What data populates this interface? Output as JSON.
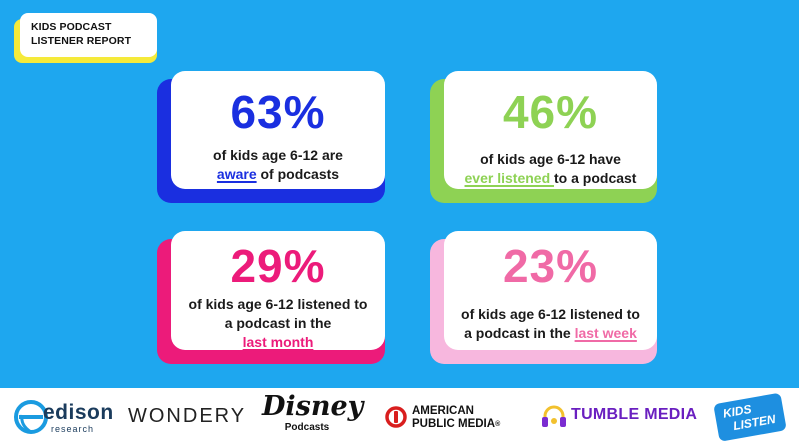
{
  "report": {
    "title_line1": "KIDS PODCAST",
    "title_line2": "LISTENER REPORT"
  },
  "stats": [
    {
      "percent": "63%",
      "text_line1": "of kids age 6-12 are",
      "highlight": "aware",
      "text_after": " of podcasts",
      "color": "#1a2fe0"
    },
    {
      "percent": "46%",
      "text_line1": "of kids age 6-12 have",
      "highlight": "ever listened ",
      "text_after": "to a podcast",
      "color": "#8ed254"
    },
    {
      "percent": "29%",
      "text_line1": "of kids age 6-12 listened to",
      "text_line2": "a podcast in the",
      "highlight": "last month",
      "color": "#ec1b7a"
    },
    {
      "percent": "23%",
      "text_line1": "of kids age 6-12 listened to",
      "text_line2": "a podcast in the ",
      "highlight": "last week",
      "color": "#f06aa6"
    }
  ],
  "colors": {
    "background": "#1ea7ef",
    "badge_shadow": "#f5ea3a",
    "card_shadow_1": "#1a2fe0",
    "card_shadow_2": "#8ed254",
    "card_shadow_3": "#ec1b7a",
    "card_shadow_4": "#f7b7de"
  },
  "logos": {
    "edison_name": "edison",
    "edison_sub": "research",
    "wondery": "WONDERY",
    "disney": "Disney",
    "disney_sub": "Podcasts",
    "apm_line1": "AMERICAN",
    "apm_line2": "PUBLIC MEDIA",
    "apm_mark": "®",
    "tumble": "TUMBLE MEDIA",
    "kids_listen_line1": "KIDS",
    "kids_listen_line2": "LISTEN"
  }
}
